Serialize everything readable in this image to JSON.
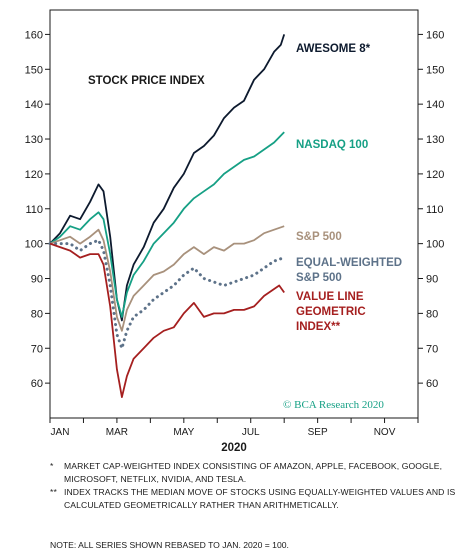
{
  "chart_data": {
    "type": "line",
    "title": "STOCK PRICE INDEX",
    "xlabel": "2020",
    "x_tick_labels": [
      "JAN",
      "MAR",
      "MAY",
      "JUL",
      "SEP",
      "NOV"
    ],
    "y_ticks": [
      60,
      70,
      80,
      90,
      100,
      110,
      120,
      130,
      140,
      150,
      160
    ],
    "ylim": [
      50,
      167
    ],
    "xlim_months": [
      0,
      11
    ],
    "grid": false,
    "credit": "© BCA Research 2020",
    "colors": {
      "awesome": "#0d1a2e",
      "nasdaq": "#16a085",
      "sp500": "#a8917c",
      "equal": "#5d7289",
      "valueline": "#a51f1f"
    },
    "series": [
      {
        "name": "AWESOME 8*",
        "key": "awesome",
        "style": "solid",
        "points": [
          [
            0,
            100
          ],
          [
            0.3,
            103
          ],
          [
            0.6,
            108
          ],
          [
            0.9,
            107
          ],
          [
            1.2,
            112
          ],
          [
            1.45,
            117
          ],
          [
            1.6,
            115
          ],
          [
            1.8,
            102
          ],
          [
            2.0,
            84
          ],
          [
            2.15,
            78
          ],
          [
            2.3,
            88
          ],
          [
            2.5,
            94
          ],
          [
            2.8,
            99
          ],
          [
            3.1,
            106
          ],
          [
            3.4,
            110
          ],
          [
            3.7,
            116
          ],
          [
            4.0,
            120
          ],
          [
            4.3,
            126
          ],
          [
            4.6,
            128
          ],
          [
            4.9,
            131
          ],
          [
            5.2,
            136
          ],
          [
            5.5,
            139
          ],
          [
            5.8,
            141
          ],
          [
            6.1,
            147
          ],
          [
            6.4,
            150
          ],
          [
            6.7,
            155
          ],
          [
            6.9,
            157
          ],
          [
            7.0,
            160
          ]
        ]
      },
      {
        "name": "NASDAQ 100",
        "key": "nasdaq",
        "style": "solid",
        "points": [
          [
            0,
            100
          ],
          [
            0.3,
            102
          ],
          [
            0.6,
            105
          ],
          [
            0.9,
            104
          ],
          [
            1.2,
            107
          ],
          [
            1.45,
            109
          ],
          [
            1.6,
            107
          ],
          [
            1.8,
            97
          ],
          [
            2.0,
            84
          ],
          [
            2.15,
            79
          ],
          [
            2.3,
            86
          ],
          [
            2.5,
            91
          ],
          [
            2.8,
            95
          ],
          [
            3.1,
            100
          ],
          [
            3.4,
            103
          ],
          [
            3.7,
            106
          ],
          [
            4.0,
            110
          ],
          [
            4.3,
            113
          ],
          [
            4.6,
            115
          ],
          [
            4.9,
            117
          ],
          [
            5.2,
            120
          ],
          [
            5.5,
            122
          ],
          [
            5.8,
            124
          ],
          [
            6.1,
            125
          ],
          [
            6.4,
            127
          ],
          [
            6.7,
            129
          ],
          [
            7.0,
            132
          ]
        ]
      },
      {
        "name": "S&P 500",
        "key": "sp500",
        "style": "solid",
        "points": [
          [
            0,
            100
          ],
          [
            0.3,
            101
          ],
          [
            0.6,
            102
          ],
          [
            0.9,
            100
          ],
          [
            1.2,
            102
          ],
          [
            1.45,
            104
          ],
          [
            1.6,
            101
          ],
          [
            1.8,
            92
          ],
          [
            2.0,
            79
          ],
          [
            2.15,
            75
          ],
          [
            2.3,
            81
          ],
          [
            2.5,
            85
          ],
          [
            2.8,
            88
          ],
          [
            3.1,
            91
          ],
          [
            3.4,
            92
          ],
          [
            3.7,
            94
          ],
          [
            4.0,
            97
          ],
          [
            4.3,
            99
          ],
          [
            4.6,
            97
          ],
          [
            4.9,
            99
          ],
          [
            5.2,
            98
          ],
          [
            5.5,
            100
          ],
          [
            5.8,
            100
          ],
          [
            6.1,
            101
          ],
          [
            6.4,
            103
          ],
          [
            6.7,
            104
          ],
          [
            7.0,
            105
          ]
        ]
      },
      {
        "name": "EQUAL-WEIGHTED S&P 500",
        "key": "equal",
        "style": "dotted",
        "points": [
          [
            0,
            100
          ],
          [
            0.3,
            100
          ],
          [
            0.6,
            100
          ],
          [
            0.9,
            98
          ],
          [
            1.2,
            100
          ],
          [
            1.45,
            101
          ],
          [
            1.6,
            98
          ],
          [
            1.8,
            88
          ],
          [
            2.0,
            74
          ],
          [
            2.15,
            70
          ],
          [
            2.3,
            75
          ],
          [
            2.5,
            79
          ],
          [
            2.8,
            81
          ],
          [
            3.1,
            84
          ],
          [
            3.4,
            86
          ],
          [
            3.7,
            88
          ],
          [
            4.0,
            91
          ],
          [
            4.3,
            93
          ],
          [
            4.6,
            90
          ],
          [
            4.9,
            89
          ],
          [
            5.2,
            88
          ],
          [
            5.5,
            89
          ],
          [
            5.8,
            90
          ],
          [
            6.1,
            91
          ],
          [
            6.4,
            93
          ],
          [
            6.7,
            95
          ],
          [
            7.0,
            96
          ]
        ]
      },
      {
        "name": "VALUE LINE GEOMETRIC INDEX**",
        "key": "valueline",
        "style": "solid",
        "points": [
          [
            0,
            100
          ],
          [
            0.3,
            99
          ],
          [
            0.6,
            98
          ],
          [
            0.9,
            96
          ],
          [
            1.2,
            97
          ],
          [
            1.45,
            97
          ],
          [
            1.6,
            94
          ],
          [
            1.8,
            82
          ],
          [
            2.0,
            64
          ],
          [
            2.15,
            56
          ],
          [
            2.3,
            62
          ],
          [
            2.5,
            67
          ],
          [
            2.8,
            70
          ],
          [
            3.1,
            73
          ],
          [
            3.4,
            75
          ],
          [
            3.7,
            76
          ],
          [
            4.0,
            80
          ],
          [
            4.3,
            83
          ],
          [
            4.6,
            79
          ],
          [
            4.9,
            80
          ],
          [
            5.2,
            80
          ],
          [
            5.5,
            81
          ],
          [
            5.8,
            81
          ],
          [
            6.1,
            82
          ],
          [
            6.4,
            85
          ],
          [
            6.7,
            87
          ],
          [
            6.85,
            88
          ],
          [
            7.0,
            86
          ]
        ]
      }
    ],
    "labels": {
      "awesome": "AWESOME 8*",
      "nasdaq": "NASDAQ 100",
      "sp500": "S&P 500",
      "equal_line1": "EQUAL-WEIGHTED",
      "equal_line2": "S&P 500",
      "valueline_line1": "VALUE LINE",
      "valueline_line2": "GEOMETRIC",
      "valueline_line3": "INDEX**"
    }
  },
  "notes": {
    "note1_mark": "*",
    "note1": "MARKET CAP-WEIGHTED INDEX CONSISTING OF AMAZON, APPLE, FACEBOOK, GOOGLE, MICROSOFT, NETFLIX, NVIDIA, AND TESLA.",
    "note2_mark": "**",
    "note2": "INDEX TRACKS THE MEDIAN MOVE OF STOCKS USING EQUALLY-WEIGHTED VALUES AND IS CALCULATED GEOMETRICALLY RATHER THAN ARITHMETICALLY.",
    "final": "NOTE: ALL SERIES SHOWN REBASED TO JAN. 2020 = 100."
  }
}
